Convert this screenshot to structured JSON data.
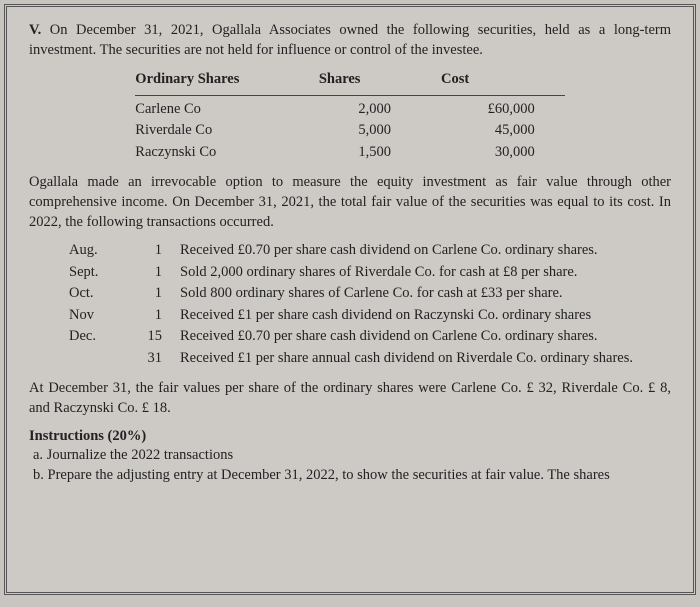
{
  "problem": {
    "number": "V.",
    "intro": "On December 31, 2021, Ogallala Associates owned the following securities, held as a long-term investment. The securities are not held for influence or control of the investee."
  },
  "securities_table": {
    "headers": {
      "c1": "Ordinary Shares",
      "c2": "Shares",
      "c3": "Cost"
    },
    "rows": [
      {
        "name": "Carlene Co",
        "shares": "2,000",
        "cost": "£60,000"
      },
      {
        "name": "Riverdale Co",
        "shares": "5,000",
        "cost": "45,000"
      },
      {
        "name": "Raczynski Co",
        "shares": "1,500",
        "cost": "30,000"
      }
    ]
  },
  "midpara": "Ogallala made an irrevocable option to measure the equity investment as fair value through other comprehensive income. On December 31, 2021, the total fair value of the securities was equal to its cost. In 2022, the following transactions occurred.",
  "transactions": [
    {
      "month": "Aug.",
      "day": "1",
      "desc": "Received £0.70 per share cash dividend on Carlene Co. ordinary shares."
    },
    {
      "month": "Sept.",
      "day": "1",
      "desc": "Sold 2,000 ordinary shares of Riverdale Co. for cash at £8 per share."
    },
    {
      "month": "Oct.",
      "day": "1",
      "desc": "Sold 800 ordinary shares of Carlene Co. for cash at £33 per share."
    },
    {
      "month": "Nov",
      "day": "1",
      "desc": "Received £1 per share cash dividend on Raczynski Co. ordinary shares"
    },
    {
      "month": "Dec.",
      "day": "15",
      "desc": "Received £0.70 per share cash dividend on Carlene Co. ordinary shares."
    },
    {
      "month": "",
      "day": "31",
      "desc": "Received £1 per share annual cash dividend on Riverdale Co. ordinary shares."
    }
  ],
  "closing": "At December 31, the fair values per share of the ordinary shares were Carlene Co. £ 32, Riverdale Co. £ 8, and Raczynski Co. £ 18.",
  "instructions": {
    "heading": "Instructions (20%)",
    "a": "a. Journalize the 2022 transactions",
    "b": "b. Prepare the adjusting entry at December 31, 2022, to show the securities at fair value. The shares"
  }
}
